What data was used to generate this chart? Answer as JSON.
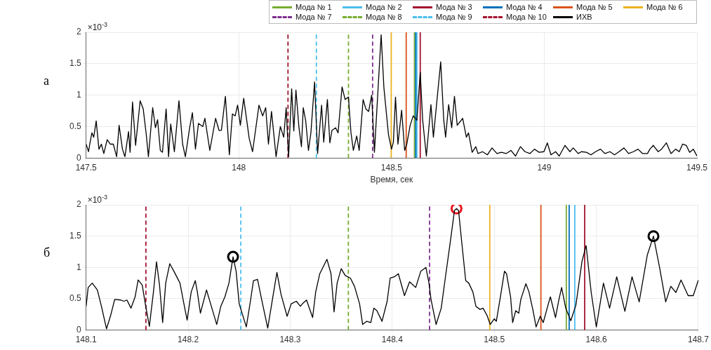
{
  "chart_data": [
    {
      "type": "line",
      "xlabel": "Время, сек",
      "ylabel": "×10$^{-3}$",
      "annotations": [
        "а"
      ],
      "xlim": [
        147.5,
        149.5
      ],
      "xticks": [
        147.5,
        148,
        148.5,
        149,
        149.5
      ],
      "ylim": [
        0,
        2
      ],
      "yticks": [
        0,
        0.5,
        1,
        1.5,
        2
      ],
      "grid": true,
      "legend": "top right",
      "ref_lines": [
        {
          "axis": "x",
          "value": 148.575,
          "label": "Мода № 1",
          "color": "#77ac30",
          "line_style": "solid"
        },
        {
          "axis": "x",
          "value": 148.583,
          "label": "Мода № 2",
          "color": "#4dbeee",
          "line_style": "solid"
        },
        {
          "axis": "x",
          "value": 148.594,
          "label": "Мода № 3",
          "color": "#a2142f",
          "line_style": "solid"
        },
        {
          "axis": "x",
          "value": 148.579,
          "label": "Мода № 4",
          "color": "#0072bd",
          "line_style": "solid"
        },
        {
          "axis": "x",
          "value": 148.548,
          "label": "Мода № 5",
          "color": "#d95319",
          "line_style": "solid"
        },
        {
          "axis": "x",
          "value": 148.499,
          "label": "Мода № 6",
          "color": "#edb120",
          "line_style": "solid"
        },
        {
          "axis": "x",
          "value": 148.438,
          "label": "Мода № 7",
          "color": "#7e2f8e",
          "line_style": "dashed"
        },
        {
          "axis": "x",
          "value": 148.359,
          "label": "Мода № 8",
          "color": "#77ac30",
          "line_style": "dashed"
        },
        {
          "axis": "x",
          "value": 148.254,
          "label": "Мода № 9",
          "color": "#4dbeee",
          "line_style": "dashed"
        },
        {
          "axis": "x",
          "value": 148.161,
          "label": "Мода № 10",
          "color": "#a2142f",
          "line_style": "dashed"
        }
      ],
      "series": [
        {
          "name": "ИХВ",
          "color": "#000000",
          "type": "line",
          "x": [
            147.5,
            147.508,
            147.512,
            147.519,
            147.525,
            147.533,
            147.542,
            147.55,
            147.558,
            147.569,
            147.579,
            147.589,
            147.6,
            147.608,
            147.619,
            147.627,
            147.639,
            147.644,
            147.652,
            147.662,
            147.677,
            147.687,
            147.697,
            147.704,
            147.718,
            147.727,
            147.734,
            147.743,
            147.75,
            147.762,
            147.77,
            147.777,
            147.789,
            147.804,
            147.816,
            147.825,
            147.839,
            147.848,
            147.858,
            147.868,
            147.882,
            147.889,
            147.905,
            147.924,
            147.935,
            147.943,
            147.956,
            147.969,
            147.979,
            147.988,
            147.996,
            148.005,
            148.016,
            148.034,
            148.045,
            148.066,
            148.078,
            148.088,
            148.097,
            148.107,
            148.122,
            148.136,
            148.147,
            148.155,
            148.163,
            148.173,
            148.18,
            148.187,
            148.197,
            148.205,
            148.211,
            148.219,
            148.228,
            148.236,
            148.248,
            148.258,
            148.271,
            148.278,
            148.29,
            148.298,
            148.305,
            148.317,
            148.325,
            148.338,
            148.348,
            148.359,
            148.367,
            148.375,
            148.386,
            148.394,
            148.407,
            148.416,
            148.425,
            148.435,
            148.444,
            148.466,
            148.475,
            148.49,
            148.5,
            148.506,
            148.513,
            148.521,
            148.533,
            148.543,
            148.55,
            148.561,
            148.571,
            148.583,
            148.594,
            148.602,
            148.614,
            148.629,
            148.637,
            148.652,
            148.661,
            148.671,
            148.677,
            148.687,
            148.697,
            148.706,
            148.715,
            148.733,
            148.745,
            148.752,
            148.764,
            148.776,
            148.783,
            148.798,
            148.814,
            148.829,
            148.845,
            148.86,
            148.875,
            148.891,
            148.906,
            148.922,
            148.937,
            148.953,
            148.968,
            148.983,
            148.999,
            149.01,
            149.022,
            149.037,
            149.049,
            149.068,
            149.084,
            149.095,
            149.111,
            149.122,
            149.138,
            149.153,
            149.168,
            149.184,
            149.199,
            149.215,
            149.23,
            149.245,
            149.261,
            149.276,
            149.292,
            149.307,
            149.322,
            149.338,
            149.346,
            149.357,
            149.373,
            149.384,
            149.4,
            149.415,
            149.43,
            149.442,
            149.453,
            149.465,
            149.476,
            149.488,
            149.5
          ],
          "values": [
            0.22,
            0.1,
            0.22,
            0.4,
            0.33,
            0.59,
            0.14,
            0.22,
            0.07,
            0.29,
            0.22,
            0.22,
            0.02,
            0.52,
            0.14,
            0.02,
            0.42,
            0.09,
            0.89,
            0.2,
            0.91,
            0.78,
            0.37,
            0.02,
            0.8,
            0.48,
            0.61,
            0.12,
            0.09,
            0.78,
            0.02,
            0.54,
            0.1,
            0.91,
            0.22,
            0.02,
            0.48,
            0.72,
            0.14,
            0.55,
            0.5,
            0.63,
            0.12,
            0.63,
            0.44,
            0.44,
            0.98,
            0.05,
            0.7,
            0.67,
            0.84,
            0.52,
            0.95,
            0.31,
            0.1,
            0.84,
            0.67,
            0.8,
            0.22,
            0.74,
            0.02,
            0.5,
            0.33,
            0.8,
            0.02,
            1.1,
            0.43,
            1.08,
            0.48,
            0.18,
            0.8,
            0.59,
            0.12,
            0.4,
            1.21,
            0.07,
            0.84,
            0.25,
            0.93,
            0.24,
            0.44,
            0.48,
            0.4,
            1.13,
            0.93,
            0.97,
            0.41,
            0.12,
            0.35,
            0.12,
            0.93,
            0.78,
            0.74,
            1.0,
            0.09,
            1.96,
            1.12,
            0.37,
            0.14,
            0.25,
            0.97,
            0.22,
            0.76,
            0.12,
            0.22,
            0.52,
            0.67,
            0.6,
            1.36,
            0.6,
            0.03,
            0.85,
            0.33,
            1.08,
            1.53,
            0.6,
            0.33,
            0.85,
            0.48,
            0.98,
            0.52,
            0.63,
            0.33,
            0.4,
            0.09,
            0.18,
            0.07,
            0.1,
            0.05,
            0.16,
            0.07,
            0.09,
            0.07,
            0.12,
            0.03,
            0.18,
            0.1,
            0.07,
            0.14,
            0.09,
            0.1,
            0.24,
            0.05,
            0.1,
            0.03,
            0.2,
            0.1,
            0.16,
            0.07,
            0.1,
            0.09,
            0.05,
            0.1,
            0.14,
            0.07,
            0.1,
            0.05,
            0.1,
            0.16,
            0.07,
            0.1,
            0.14,
            0.07,
            0.07,
            0.14,
            0.2,
            0.1,
            0.14,
            0.24,
            0.07,
            0.14,
            0.1,
            0.22,
            0.2,
            0.09,
            0.14,
            0.03
          ]
        }
      ]
    },
    {
      "type": "line",
      "ylabel": "×10$^{-3}$",
      "annotations": [
        "б"
      ],
      "xlim": [
        148.1,
        148.7
      ],
      "xticks": [
        148.1,
        148.2,
        148.3,
        148.4,
        148.5,
        148.6,
        148.7
      ],
      "ylim": [
        0,
        2
      ],
      "yticks": [
        0,
        0.5,
        1,
        1.5,
        2
      ],
      "grid": true,
      "ref_lines": [
        {
          "axis": "x",
          "value": 148.5706,
          "color": "#77ac30",
          "line_style": "solid"
        },
        {
          "axis": "x",
          "value": 148.5789,
          "color": "#4dbeee",
          "line_style": "solid"
        },
        {
          "axis": "x",
          "value": 148.5886,
          "color": "#a2142f",
          "line_style": "solid"
        },
        {
          "axis": "x",
          "value": 148.5734,
          "color": "#0072bd",
          "line_style": "solid"
        },
        {
          "axis": "x",
          "value": 148.5457,
          "color": "#d95319",
          "line_style": "solid"
        },
        {
          "axis": "x",
          "value": 148.4956,
          "color": "#edb120",
          "line_style": "solid"
        },
        {
          "axis": "x",
          "value": 148.4366,
          "color": "#7e2f8e",
          "line_style": "dashed"
        },
        {
          "axis": "x",
          "value": 148.357,
          "color": "#77ac30",
          "line_style": "dashed"
        },
        {
          "axis": "x",
          "value": 148.2516,
          "color": "#4dbeee",
          "line_style": "dashed"
        },
        {
          "axis": "x",
          "value": 148.1586,
          "color": "#a2142f",
          "line_style": "dashed"
        }
      ],
      "series": [
        {
          "color": "#000000",
          "type": "line",
          "x": [
            148.1,
            148.102,
            148.106,
            148.111,
            148.115,
            148.12,
            148.124,
            148.128,
            148.134,
            148.137,
            148.14,
            148.144,
            148.148,
            148.151,
            148.155,
            148.158,
            148.162,
            148.166,
            148.169,
            148.172,
            148.175,
            148.178,
            148.182,
            148.186,
            148.192,
            148.195,
            148.199,
            148.203,
            148.207,
            148.209,
            148.212,
            148.218,
            148.222,
            148.228,
            148.232,
            148.236,
            148.24,
            148.244,
            148.247,
            148.25,
            148.257,
            148.261,
            148.264,
            148.268,
            148.272,
            148.278,
            148.283,
            148.287,
            148.291,
            148.297,
            148.301,
            148.306,
            148.31,
            148.312,
            148.316,
            148.322,
            148.325,
            148.329,
            148.336,
            148.34,
            148.343,
            148.346,
            148.35,
            148.354,
            148.359,
            148.363,
            148.368,
            148.371,
            148.375,
            148.379,
            148.382,
            148.385,
            148.39,
            148.395,
            148.398,
            148.402,
            148.406,
            148.412,
            148.417,
            148.419,
            148.423,
            148.428,
            148.433,
            148.436,
            148.438,
            148.443,
            148.448,
            148.452,
            148.457,
            148.461,
            148.463,
            148.465,
            148.468,
            148.472,
            148.475,
            148.479,
            148.482,
            148.486,
            148.489,
            148.493,
            148.496,
            148.5,
            148.502,
            148.506,
            148.51,
            148.512,
            148.516,
            148.518,
            148.521,
            148.524,
            148.526,
            148.531,
            148.534,
            148.538,
            148.541,
            148.545,
            148.548,
            148.553,
            148.555,
            148.56,
            148.563,
            148.566,
            148.57,
            148.575,
            148.58,
            148.586,
            148.59,
            148.595,
            148.6,
            148.607,
            148.613,
            148.62,
            148.628,
            148.635,
            148.642,
            148.65,
            148.656,
            148.662,
            148.668,
            148.673,
            148.678,
            148.683,
            148.69,
            148.695,
            148.7
          ],
          "values": [
            0.38,
            0.68,
            0.75,
            0.64,
            0.38,
            0.02,
            0.23,
            0.49,
            0.48,
            0.46,
            0.48,
            0.35,
            0.53,
            0.8,
            0.72,
            0.42,
            0.06,
            0.61,
            1.09,
            0.71,
            0.12,
            0.75,
            1.06,
            0.94,
            0.75,
            0.49,
            0.16,
            0.61,
            0.79,
            0.61,
            0.27,
            0.64,
            0.42,
            0.09,
            0.38,
            0.53,
            0.75,
            1.17,
            0.94,
            0.42,
            0.05,
            0.46,
            0.79,
            0.81,
            0.49,
            0.03,
            0.53,
            0.92,
            0.57,
            0.22,
            0.42,
            0.46,
            0.38,
            0.42,
            0.48,
            0.2,
            0.61,
            0.9,
            1.13,
            0.9,
            0.29,
            0.75,
            0.98,
            0.87,
            0.83,
            0.7,
            0.42,
            0.09,
            0.14,
            0.12,
            0.35,
            0.31,
            0.14,
            0.46,
            0.83,
            0.85,
            0.9,
            0.55,
            0.77,
            0.74,
            0.68,
            0.94,
            1.0,
            0.75,
            0.49,
            0.09,
            0.35,
            0.83,
            1.42,
            1.91,
            1.94,
            1.91,
            1.42,
            0.79,
            0.75,
            0.61,
            0.38,
            0.33,
            0.35,
            0.23,
            0.09,
            0.18,
            0.14,
            0.53,
            0.94,
            0.9,
            0.53,
            0.12,
            0.31,
            0.27,
            0.49,
            0.74,
            0.61,
            0.31,
            0.05,
            0.22,
            0.12,
            0.42,
            0.53,
            0.2,
            0.46,
            0.68,
            0.35,
            0.15,
            0.4,
            1.1,
            1.35,
            0.6,
            0.05,
            0.75,
            0.35,
            0.85,
            0.3,
            0.85,
            0.45,
            1.2,
            1.5,
            1.0,
            0.45,
            0.7,
            0.6,
            0.8,
            0.55,
            0.55,
            0.8
          ]
        },
        {
          "type": "scatter",
          "marker": "circle",
          "x": [
            148.244,
            148.463,
            148.656
          ],
          "values": [
            1.17,
            1.94,
            1.5
          ],
          "colors": [
            "#000000",
            "#e8141e",
            "#000000"
          ]
        }
      ]
    }
  ]
}
